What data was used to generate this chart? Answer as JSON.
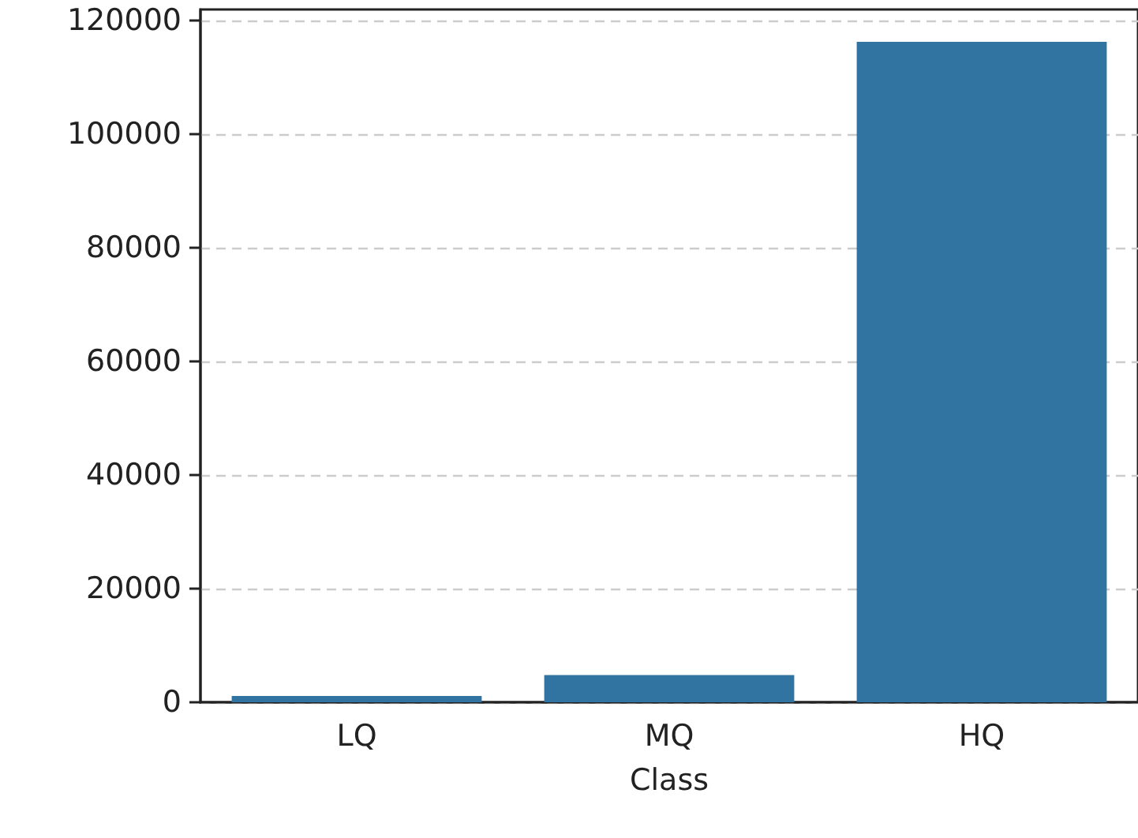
{
  "chart_data": {
    "type": "bar",
    "xlabel": "Class",
    "categories": [
      "LQ",
      "MQ",
      "HQ"
    ],
    "values": [
      1100,
      4800,
      116300
    ],
    "color": "#3274a1",
    "ylim": [
      0,
      122000
    ],
    "yticks": [
      0,
      20000,
      40000,
      60000,
      80000,
      100000,
      120000
    ],
    "grid": "y"
  }
}
